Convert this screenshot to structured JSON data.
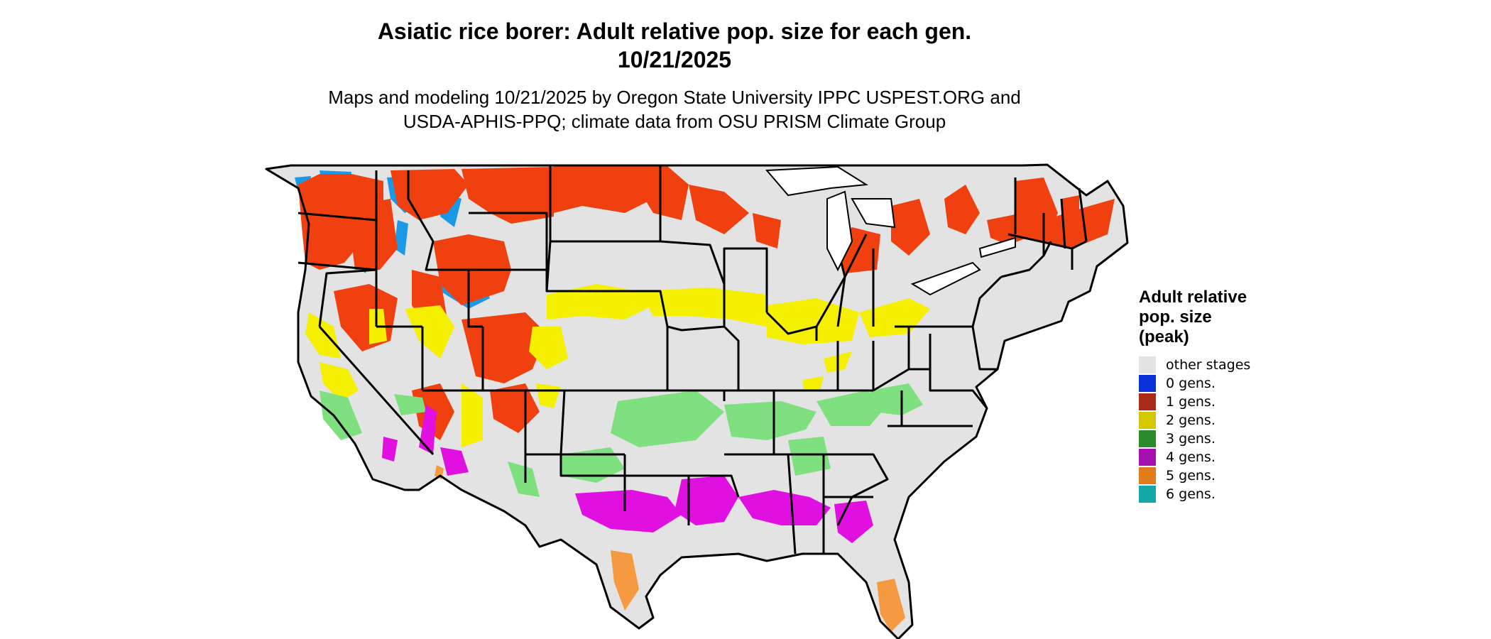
{
  "title": {
    "line1": "Asiatic rice borer: Adult relative pop. size for each gen.",
    "line2": "10/21/2025"
  },
  "subtitle": {
    "line1": "Maps and modeling 10/21/2025 by Oregon State University IPPC USPEST.ORG and",
    "line2": "USDA-APHIS-PPQ; climate data from OSU PRISM Climate Group"
  },
  "legend": {
    "title": [
      "Adult relative",
      "pop. size",
      "(peak)"
    ],
    "items": [
      {
        "label": "other stages",
        "color": "#e3e3e3"
      },
      {
        "label": "0 gens.",
        "color": "#0a32d8"
      },
      {
        "label": "1 gens.",
        "color": "#a82a17"
      },
      {
        "label": "2 gens.",
        "color": "#d6c800"
      },
      {
        "label": "3 gens.",
        "color": "#2a8a2a"
      },
      {
        "label": "4 gens.",
        "color": "#a510b0"
      },
      {
        "label": "5 gens.",
        "color": "#e07c1c"
      },
      {
        "label": "6 gens.",
        "color": "#12a8a8"
      }
    ]
  },
  "map_colors": {
    "background_land": "#e3e3e3",
    "gen0_map": "#1a9ae6",
    "gen1_map": "#f04010",
    "gen2_map": "#f5f000",
    "gen3_map": "#7fe07f",
    "gen4_map": "#e010e0",
    "gen5_map": "#f59a40",
    "borders": "#000000"
  }
}
